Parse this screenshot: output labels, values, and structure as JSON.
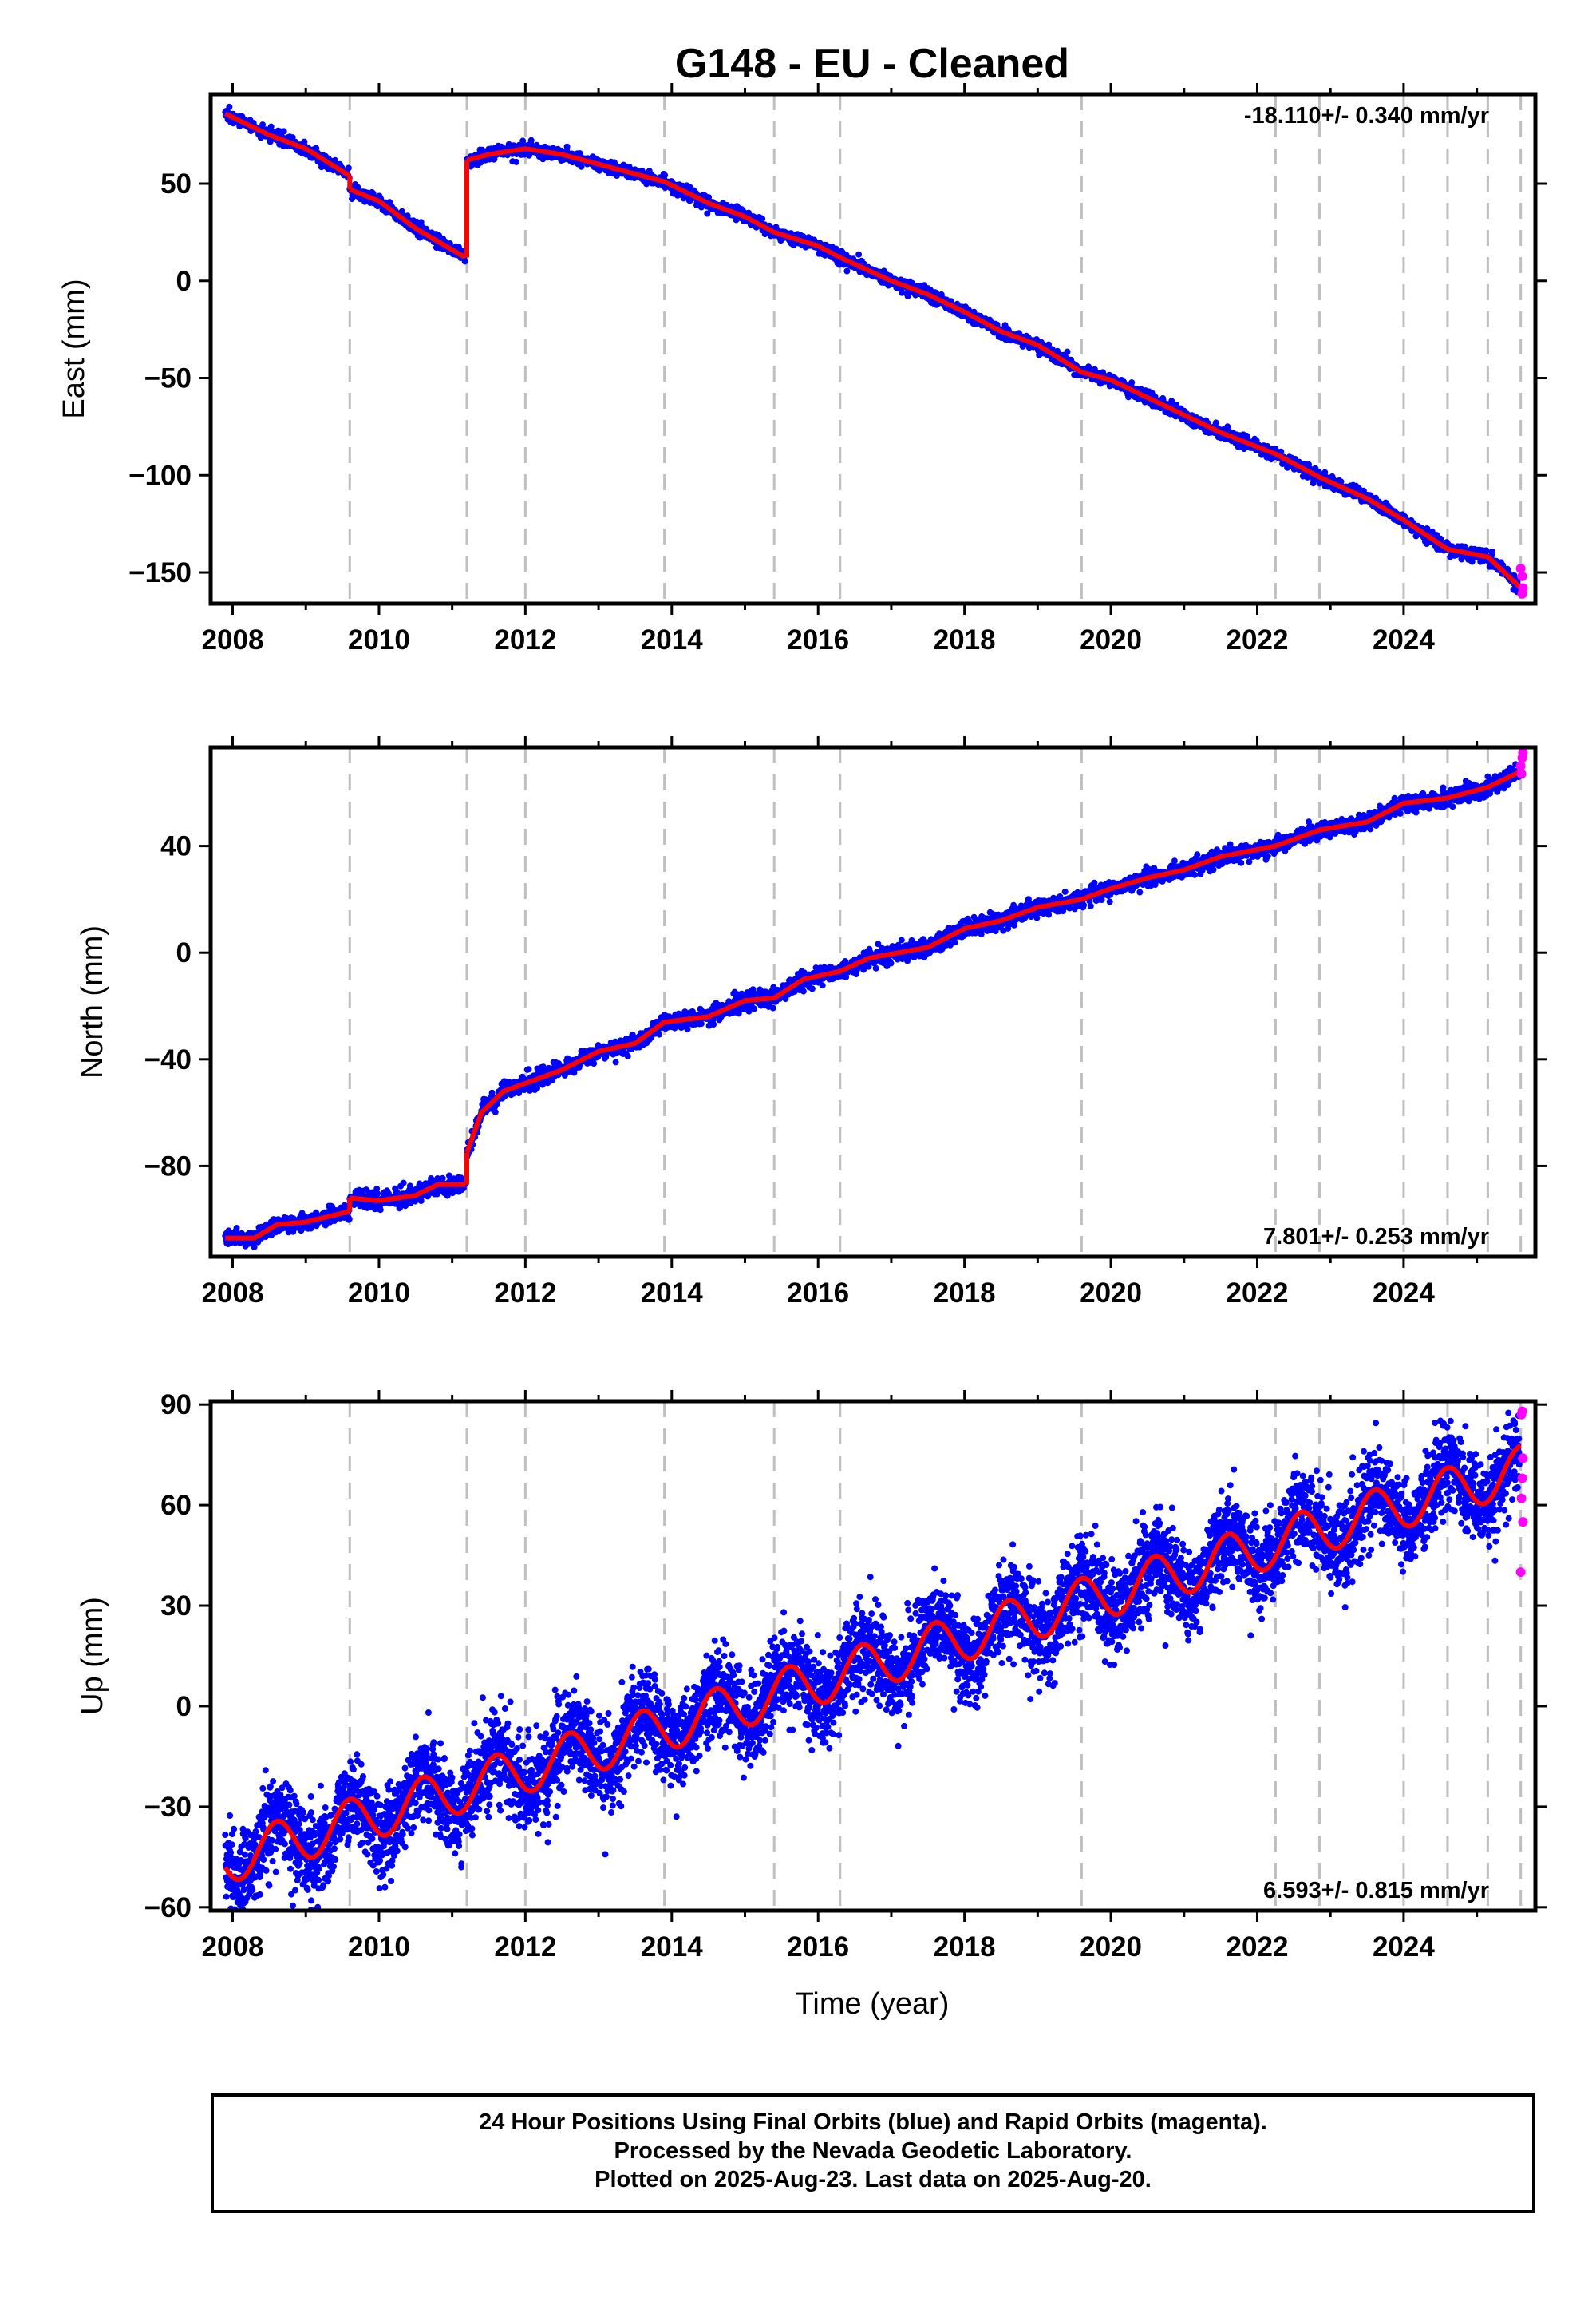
{
  "title": "G148  - EU - Cleaned",
  "xlabel": "Time (year)",
  "caption": [
    "24 Hour Positions Using Final Orbits (blue) and Rapid Orbits (magenta).",
    "Processed by the Nevada Geodetic Laboratory.",
    "Plotted on 2025-Aug-23. Last data on 2025-Aug-20."
  ],
  "colors": {
    "final": "#0000ff",
    "rapid": "#ff00ff",
    "model": "#ff0000",
    "grid": "#bfbfbf"
  },
  "chart_data": [
    {
      "type": "scatter",
      "name": "east",
      "ylabel": "East (mm)",
      "rate": "-18.110+/- 0.340 mm/yr",
      "rate_position": "top-right",
      "xlim": [
        2007.7,
        2025.8
      ],
      "ylim": [
        -166,
        96
      ],
      "xticks": [
        2008,
        2010,
        2012,
        2014,
        2016,
        2018,
        2020,
        2022,
        2024
      ],
      "yticks": [
        50,
        0,
        -50,
        -100,
        -150
      ],
      "ytick_labels": [
        "50",
        "0",
        "−50",
        "−100",
        "−150"
      ],
      "dashed_lines": [
        2009.6,
        2011.2,
        2012.0,
        2013.9,
        2015.4,
        2016.3,
        2019.6,
        2022.25,
        2022.85,
        2024.0,
        2024.6,
        2025.15,
        2025.6
      ],
      "model_segments": [
        [
          [
            2007.9,
            86
          ],
          [
            2008.5,
            75
          ],
          [
            2009.0,
            68
          ],
          [
            2009.6,
            54
          ]
        ],
        [
          [
            2009.6,
            47
          ],
          [
            2010.0,
            41
          ],
          [
            2010.5,
            27
          ],
          [
            2011.18,
            12
          ]
        ],
        [
          [
            2011.2,
            62
          ],
          [
            2011.5,
            65
          ],
          [
            2012.0,
            68
          ],
          [
            2012.5,
            65
          ],
          [
            2013.0,
            60
          ],
          [
            2013.9,
            51
          ],
          [
            2014.5,
            40
          ],
          [
            2015.0,
            33
          ],
          [
            2015.4,
            25
          ],
          [
            2016.0,
            18
          ],
          [
            2016.3,
            12
          ],
          [
            2017.0,
            0
          ],
          [
            2017.5,
            -7
          ],
          [
            2018.0,
            -16
          ],
          [
            2018.5,
            -26
          ],
          [
            2019.0,
            -33
          ],
          [
            2019.6,
            -47
          ],
          [
            2020.0,
            -51
          ],
          [
            2020.5,
            -60
          ],
          [
            2021.0,
            -69
          ],
          [
            2021.5,
            -78
          ],
          [
            2022.25,
            -89
          ],
          [
            2022.85,
            -101
          ],
          [
            2023.5,
            -112
          ],
          [
            2024.0,
            -123
          ],
          [
            2024.6,
            -138
          ],
          [
            2025.15,
            -142
          ],
          [
            2025.6,
            -158
          ]
        ]
      ],
      "rapid_points": [
        [
          2025.6,
          -148
        ],
        [
          2025.62,
          -152
        ],
        [
          2025.63,
          -158
        ],
        [
          2025.62,
          -161
        ]
      ]
    },
    {
      "type": "scatter",
      "name": "north",
      "ylabel": "North (mm)",
      "rate": "7.801+/- 0.253 mm/yr",
      "rate_position": "bottom-right",
      "xlim": [
        2007.7,
        2025.8
      ],
      "ylim": [
        -114,
        77
      ],
      "xticks": [
        2008,
        2010,
        2012,
        2014,
        2016,
        2018,
        2020,
        2022,
        2024
      ],
      "yticks": [
        40,
        0,
        -40,
        -80
      ],
      "ytick_labels": [
        "40",
        "0",
        "−40",
        "−80"
      ],
      "dashed_lines": [
        2009.6,
        2011.2,
        2012.0,
        2013.9,
        2015.4,
        2016.3,
        2019.6,
        2022.25,
        2022.85,
        2024.0,
        2024.6,
        2025.15,
        2025.6
      ],
      "model_segments": [
        [
          [
            2007.9,
            -107
          ],
          [
            2008.3,
            -107
          ],
          [
            2008.6,
            -102
          ],
          [
            2009.0,
            -101
          ],
          [
            2009.6,
            -97
          ]
        ],
        [
          [
            2009.6,
            -92
          ],
          [
            2010.0,
            -93
          ],
          [
            2010.5,
            -91
          ],
          [
            2010.8,
            -87
          ],
          [
            2011.18,
            -87
          ]
        ],
        [
          [
            2011.2,
            -75
          ],
          [
            2011.4,
            -60
          ],
          [
            2011.7,
            -52
          ],
          [
            2012.0,
            -49
          ],
          [
            2012.5,
            -44
          ],
          [
            2013.0,
            -37
          ],
          [
            2013.5,
            -34
          ],
          [
            2013.9,
            -26
          ],
          [
            2014.5,
            -24
          ],
          [
            2015.0,
            -18
          ],
          [
            2015.4,
            -17
          ],
          [
            2015.8,
            -10
          ],
          [
            2016.3,
            -7
          ],
          [
            2016.7,
            -2
          ],
          [
            2017.5,
            2
          ],
          [
            2018.0,
            9
          ],
          [
            2018.5,
            12
          ],
          [
            2019.0,
            17
          ],
          [
            2019.6,
            20
          ],
          [
            2020.0,
            24
          ],
          [
            2020.5,
            28
          ],
          [
            2021.0,
            31
          ],
          [
            2021.5,
            36
          ],
          [
            2022.25,
            40
          ],
          [
            2022.85,
            46
          ],
          [
            2023.5,
            49
          ],
          [
            2024.0,
            56
          ],
          [
            2024.6,
            58
          ],
          [
            2025.15,
            62
          ],
          [
            2025.6,
            68
          ]
        ]
      ],
      "rapid_points": [
        [
          2025.6,
          70
        ],
        [
          2025.62,
          73
        ],
        [
          2025.63,
          75
        ],
        [
          2025.61,
          67
        ]
      ]
    },
    {
      "type": "scatter",
      "name": "up",
      "ylabel": "Up (mm)",
      "rate": "6.593+/- 0.815 mm/yr",
      "rate_position": "bottom-right",
      "xlim": [
        2007.7,
        2025.8
      ],
      "ylim": [
        -61,
        91
      ],
      "xticks": [
        2008,
        2010,
        2012,
        2014,
        2016,
        2018,
        2020,
        2022,
        2024
      ],
      "yticks": [
        90,
        60,
        30,
        0,
        -30,
        -60
      ],
      "ytick_labels": [
        "90",
        "60",
        "30",
        "0",
        "−30",
        "−60"
      ],
      "dashed_lines": [
        2009.6,
        2011.2,
        2012.0,
        2013.9,
        2015.4,
        2016.3,
        2019.6,
        2022.25,
        2022.85,
        2024.0,
        2024.6,
        2025.15,
        2025.6
      ],
      "model_trend": {
        "start": [
          2007.9,
          -46
        ],
        "slope": 6.593,
        "amplitude": 7
      },
      "rapid_points": [
        [
          2025.61,
          87
        ],
        [
          2025.62,
          88
        ],
        [
          2025.63,
          74
        ],
        [
          2025.62,
          68
        ],
        [
          2025.61,
          62
        ],
        [
          2025.63,
          55
        ],
        [
          2025.6,
          40
        ]
      ]
    }
  ]
}
